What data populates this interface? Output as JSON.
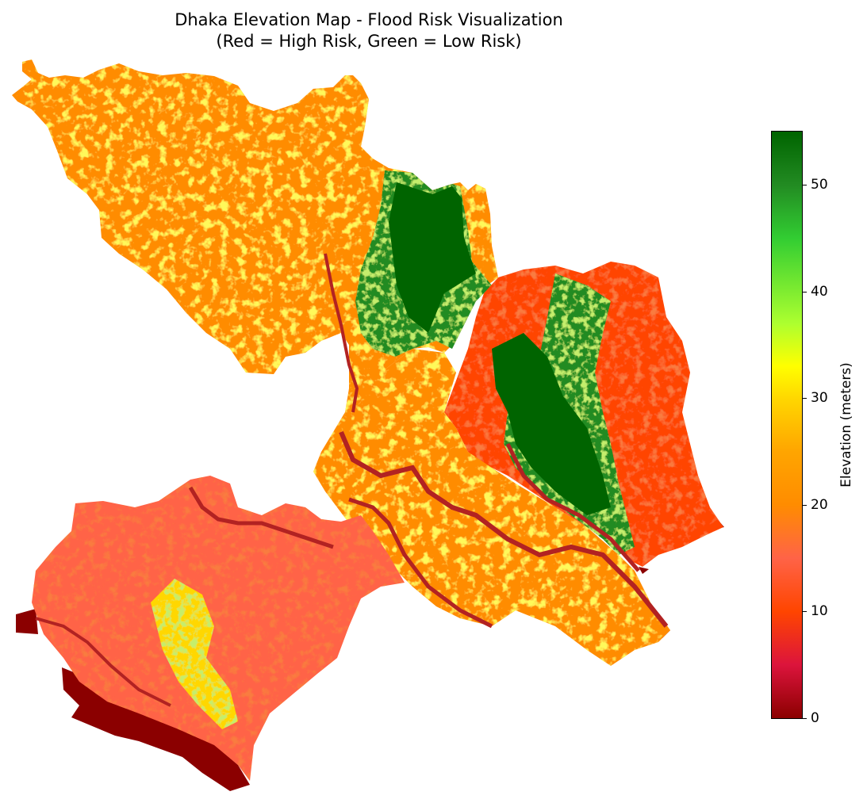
{
  "title": {
    "line1": "Dhaka Elevation Map - Flood Risk Visualization",
    "line2": "(Red = High Risk, Green = Low Risk)"
  },
  "colorbar": {
    "label": "Elevation (meters)",
    "min": 0,
    "max": 55,
    "ticks": [
      {
        "value": 0,
        "label": "0"
      },
      {
        "value": 10,
        "label": "10"
      },
      {
        "value": 20,
        "label": "20"
      },
      {
        "value": 30,
        "label": "30"
      },
      {
        "value": 40,
        "label": "40"
      },
      {
        "value": 50,
        "label": "50"
      }
    ],
    "stops": [
      {
        "value": 0,
        "color": "#8b0000"
      },
      {
        "value": 5,
        "color": "#dc143c"
      },
      {
        "value": 10,
        "color": "#ff4500"
      },
      {
        "value": 15,
        "color": "#ff6347"
      },
      {
        "value": 20,
        "color": "#ff8c00"
      },
      {
        "value": 25,
        "color": "#ffa500"
      },
      {
        "value": 30,
        "color": "#ffd700"
      },
      {
        "value": 33,
        "color": "#ffff00"
      },
      {
        "value": 37,
        "color": "#adff2f"
      },
      {
        "value": 45,
        "color": "#32cd32"
      },
      {
        "value": 50,
        "color": "#228b22"
      },
      {
        "value": 55,
        "color": "#006400"
      }
    ]
  },
  "map": {
    "region_colors": {
      "water": "#8b0000",
      "river": "#b22222",
      "low": "#ff4500",
      "mid": "#ff8c00",
      "high": "#ffd700",
      "upland": "#7fc31c",
      "forest": "#006400"
    }
  }
}
